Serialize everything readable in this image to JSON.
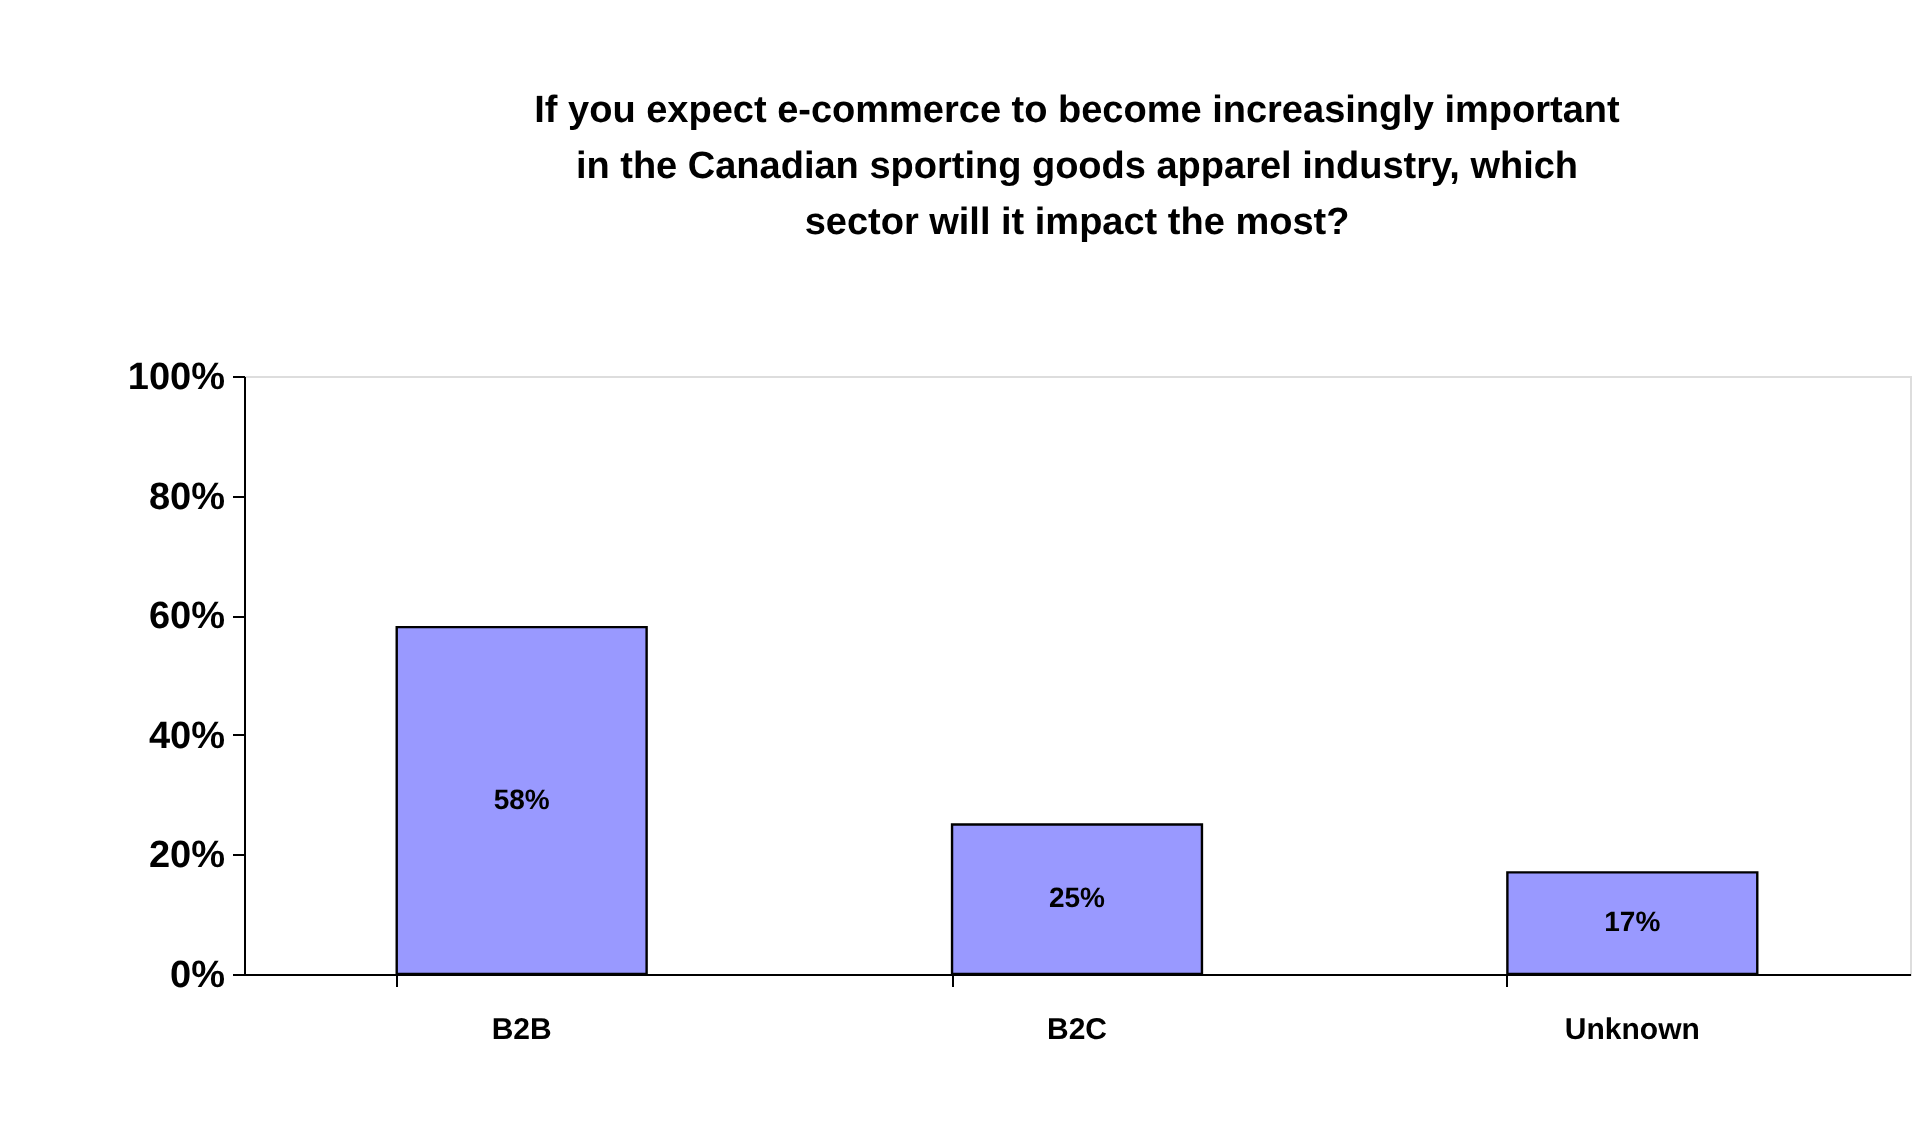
{
  "chart_data": {
    "type": "bar",
    "title": "If you expect e-commerce to become increasingly important in the Canadian sporting goods apparel industry, which sector will it impact the most?",
    "categories": [
      "B2B",
      "B2C",
      "Unknown"
    ],
    "values": [
      58,
      25,
      17
    ],
    "color": "#9999ff",
    "value_labels": [
      "58%",
      "25%",
      "17%"
    ],
    "ylim": [
      0,
      100
    ],
    "yticks": [
      {
        "value": 0,
        "label": "0%"
      },
      {
        "value": 20,
        "label": "20%"
      },
      {
        "value": 40,
        "label": "40%"
      },
      {
        "value": 60,
        "label": "60%"
      },
      {
        "value": 80,
        "label": "80%"
      },
      {
        "value": 100,
        "label": "100%"
      }
    ],
    "grid": false
  }
}
